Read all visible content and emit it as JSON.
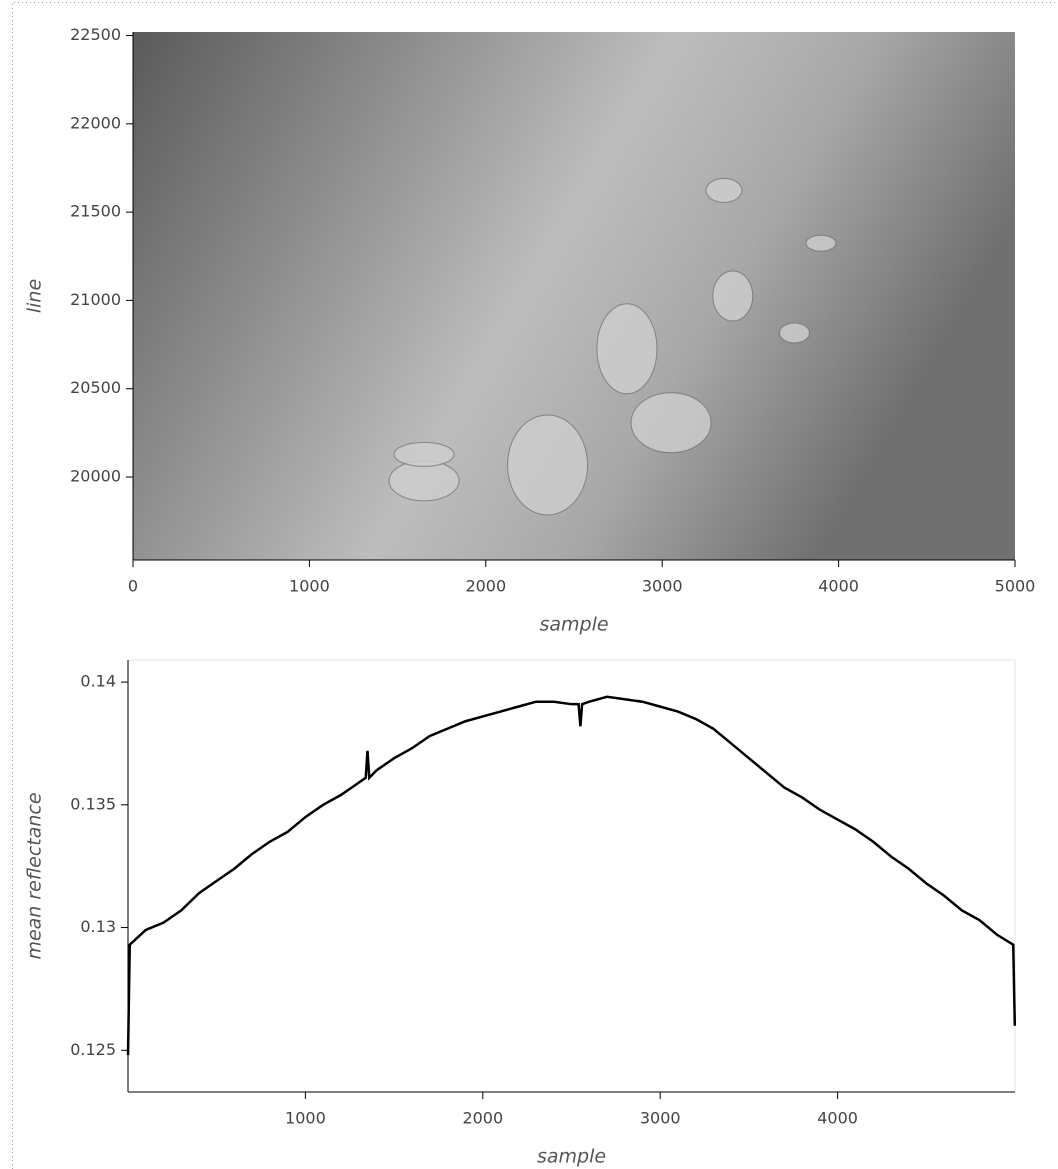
{
  "chart_data": [
    {
      "type": "image",
      "xlabel": "sample",
      "ylabel": "line",
      "xlim": [
        0,
        5000
      ],
      "ylim": [
        19530,
        22520
      ],
      "xticks": [
        0,
        1000,
        2000,
        3000,
        4000,
        5000
      ],
      "yticks": [
        20000,
        20500,
        21000,
        21500,
        22000,
        22500
      ]
    },
    {
      "type": "line",
      "xlabel": "sample",
      "ylabel": "mean reflectance",
      "color": "#000000",
      "xlim": [
        0,
        5000
      ],
      "ylim": [
        0.1233,
        0.1409
      ],
      "xticks": [
        1000,
        2000,
        3000,
        4000
      ],
      "yticks": [
        0.125,
        0.13,
        0.135,
        0.14
      ],
      "x": [
        0,
        10,
        100,
        200,
        300,
        400,
        500,
        600,
        700,
        800,
        900,
        1000,
        1100,
        1200,
        1300,
        1340,
        1350,
        1360,
        1400,
        1500,
        1600,
        1700,
        1800,
        1900,
        2000,
        2100,
        2200,
        2300,
        2400,
        2500,
        2540,
        2550,
        2560,
        2600,
        2700,
        2800,
        2900,
        3000,
        3100,
        3200,
        3300,
        3400,
        3500,
        3600,
        3700,
        3800,
        3900,
        4000,
        4100,
        4200,
        4300,
        4400,
        4500,
        4600,
        4700,
        4800,
        4900,
        4990,
        4999
      ],
      "values": [
        0.1248,
        0.1293,
        0.1299,
        0.1302,
        0.1307,
        0.1314,
        0.1319,
        0.1324,
        0.133,
        0.1335,
        0.1339,
        0.1345,
        0.135,
        0.1354,
        0.1359,
        0.1361,
        0.1372,
        0.1361,
        0.1364,
        0.1369,
        0.1373,
        0.1378,
        0.1381,
        0.1384,
        0.1386,
        0.1388,
        0.139,
        0.1392,
        0.1392,
        0.1391,
        0.1391,
        0.1382,
        0.1391,
        0.1392,
        0.1394,
        0.1393,
        0.1392,
        0.139,
        0.1388,
        0.1385,
        0.1381,
        0.1375,
        0.1369,
        0.1363,
        0.1357,
        0.1353,
        0.1348,
        0.1344,
        0.134,
        0.1335,
        0.1329,
        0.1324,
        0.1318,
        0.1313,
        0.1307,
        0.1303,
        0.1297,
        0.1293,
        0.126
      ]
    }
  ]
}
